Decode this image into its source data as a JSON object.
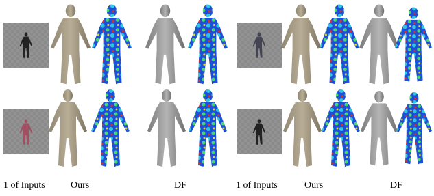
{
  "captions": [
    "1 of Inputs",
    "Ours",
    "DF",
    "1 of Inputs",
    "Ours",
    "DF"
  ]
}
